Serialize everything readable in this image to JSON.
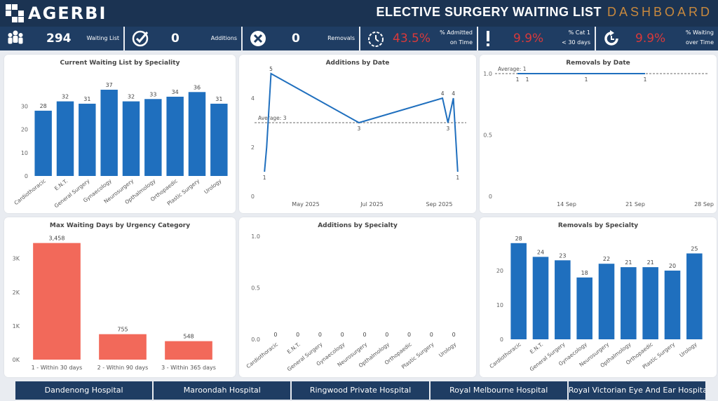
{
  "header": {
    "logo_text": "AGERBI",
    "title_main": "ELECTIVE SURGERY WAITING LIST",
    "title_sub": "DASHBOARD"
  },
  "kpis": [
    {
      "icon": "people-icon",
      "value": "294",
      "label1": "Waiting List",
      "label2": ""
    },
    {
      "icon": "check-circle-icon",
      "value": "0",
      "label1": "Additions",
      "label2": ""
    },
    {
      "icon": "x-circle-icon",
      "value": "0",
      "label1": "Removals",
      "label2": ""
    },
    {
      "icon": "timer-icon",
      "value": "43.5%",
      "label1": "% Admitted",
      "label2": "on Time",
      "red": true
    },
    {
      "icon": "exclamation-icon",
      "value": "9.9%",
      "label1": "% Cat 1",
      "label2": "< 30 days",
      "red": true
    },
    {
      "icon": "refresh-icon",
      "value": "9.9%",
      "label1": "% Waiting",
      "label2": "over Time",
      "red": true
    }
  ],
  "colors": {
    "bar_blue": "#1f6fbe",
    "bar_red": "#f2695a",
    "header": "#1b3352",
    "kpi_bg": "#1f3d63",
    "accent_gold": "#c8893e",
    "kpi_red": "#d9393a"
  },
  "chart_data": [
    {
      "id": "waiting-by-speciality",
      "type": "bar",
      "title": "Current Waiting List by Speciality",
      "categories": [
        "Cardiothoracic",
        "E.N.T.",
        "General Surgery",
        "Gynaecology",
        "Neurosurgery",
        "Opthalmology",
        "Orthopaedic",
        "Plastic Surgery",
        "Urology"
      ],
      "values": [
        28,
        32,
        31,
        37,
        32,
        33,
        34,
        36,
        31
      ],
      "ylim": [
        0,
        40
      ],
      "yticks": [
        0,
        10,
        20,
        30
      ]
    },
    {
      "id": "additions-by-date",
      "type": "line",
      "title": "Additions by Date",
      "x": [
        "2025-03-24",
        "2025-03-26",
        "2025-03-30",
        "2025-06-19",
        "2025-09-04",
        "2025-09-09",
        "2025-09-14",
        "2025-09-18"
      ],
      "values": [
        1,
        2,
        5,
        3,
        4,
        3,
        4,
        1
      ],
      "point_labels": [
        "1",
        "",
        "5",
        "3",
        "4",
        "3",
        "4",
        "1"
      ],
      "average": 3,
      "average_label": "Average: 3",
      "ylim": [
        0,
        5
      ],
      "yticks": [
        0,
        2,
        4
      ],
      "xticks": [
        "May 2025",
        "Jul 2025",
        "Sep 2025"
      ]
    },
    {
      "id": "removals-by-date",
      "type": "line",
      "title": "Removals by Date",
      "x": [
        "2025-09-09",
        "2025-09-10",
        "2025-09-16",
        "2025-09-22"
      ],
      "values": [
        1,
        1,
        1,
        1
      ],
      "point_labels": [
        "1",
        "1",
        "1",
        "1"
      ],
      "average": 1,
      "average_label": "Average: 1",
      "ylim": [
        0,
        1
      ],
      "yticks": [
        "0",
        "0.5",
        "1.0"
      ],
      "xticks": [
        "14 Sep",
        "21 Sep",
        "28 Sep"
      ]
    },
    {
      "id": "max-waiting-days",
      "type": "bar",
      "title": "Max Waiting Days by Urgency Category",
      "categories": [
        "1 - Within 30 days",
        "2 - Within 90 days",
        "3 - Within 365 days"
      ],
      "values": [
        3458,
        755,
        548
      ],
      "value_labels": [
        "3,458",
        "755",
        "548"
      ],
      "ylim": [
        0,
        3700
      ],
      "yticks": [
        "0K",
        "1K",
        "2K",
        "3K"
      ]
    },
    {
      "id": "additions-by-specialty",
      "type": "bar",
      "title": "Additions by Specialty",
      "categories": [
        "Cardiothoracic",
        "E.N.T.",
        "General Surgery",
        "Gynaecology",
        "Neurosurgery",
        "Opthalmology",
        "Orthopaedic",
        "Plastic Surgery",
        "Urology"
      ],
      "values": [
        0,
        0,
        0,
        0,
        0,
        0,
        0,
        0,
        0
      ],
      "ylim": [
        0,
        1
      ],
      "yticks": [
        "0.0",
        "0.5",
        "1.0"
      ]
    },
    {
      "id": "removals-by-specialty",
      "type": "bar",
      "title": "Removals by Specialty",
      "categories": [
        "Cardiothoracic",
        "E.N.T.",
        "General Surgery",
        "Gynaecology",
        "Neurosurgery",
        "Opthalmology",
        "Orthopaedic",
        "Plastic Surgery",
        "Urology"
      ],
      "values": [
        28,
        24,
        23,
        18,
        22,
        21,
        21,
        20,
        25
      ],
      "ylim": [
        0,
        30
      ],
      "yticks": [
        0,
        10,
        20
      ]
    }
  ],
  "hospitals": [
    "Dandenong Hospital",
    "Maroondah Hospital",
    "Ringwood Private Hospital",
    "Royal Melbourne Hospital",
    "Royal Victorian Eye And Ear Hospital"
  ]
}
